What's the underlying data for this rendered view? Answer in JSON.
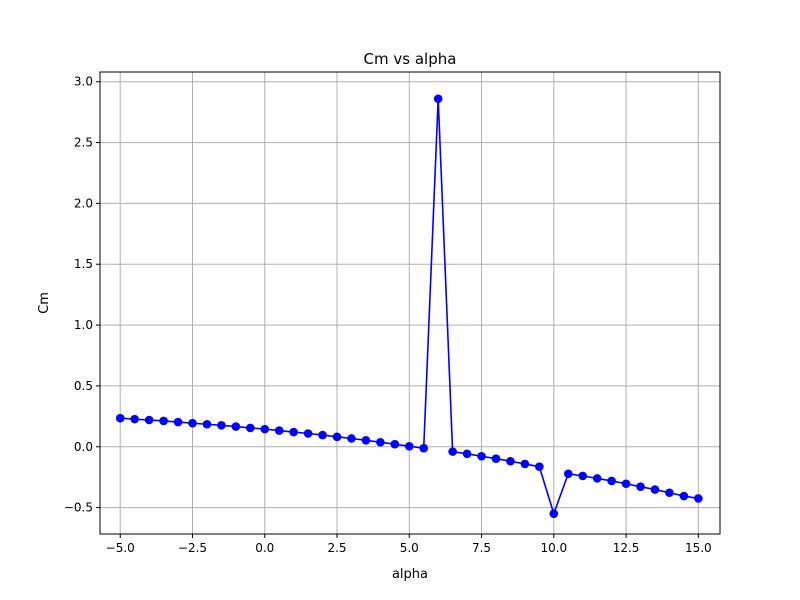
{
  "chart_data": {
    "type": "line",
    "title": "Cm vs alpha",
    "xlabel": "alpha",
    "ylabel": "Cm",
    "xlim": [
      -5.7,
      15.75
    ],
    "ylim": [
      -0.717,
      3.08
    ],
    "grid": true,
    "xticks": [
      -5.0,
      -2.5,
      0.0,
      2.5,
      5.0,
      7.5,
      10.0,
      12.5,
      15.0
    ],
    "xtick_labels": [
      "−5.0",
      "−2.5",
      "0.0",
      "2.5",
      "5.0",
      "7.5",
      "10.0",
      "12.5",
      "15.0"
    ],
    "yticks": [
      -0.5,
      0.0,
      0.5,
      1.0,
      1.5,
      2.0,
      2.5,
      3.0
    ],
    "ytick_labels": [
      "−0.5",
      "0.0",
      "0.5",
      "1.0",
      "1.5",
      "2.0",
      "2.5",
      "3.0"
    ],
    "series": [
      {
        "color": "#0000ff",
        "marker": "circle",
        "x": [
          -5.0,
          -4.5,
          -4.0,
          -3.5,
          -3.0,
          -2.5,
          -2.0,
          -1.5,
          -1.0,
          -0.5,
          0.0,
          0.5,
          1.0,
          1.5,
          2.0,
          2.5,
          3.0,
          3.5,
          4.0,
          4.5,
          5.0,
          5.5,
          6.0,
          6.5,
          7.0,
          7.5,
          8.0,
          8.5,
          9.0,
          9.5,
          10.0,
          10.5,
          11.0,
          11.5,
          12.0,
          12.5,
          13.0,
          13.5,
          14.0,
          14.5,
          15.0
        ],
        "y": [
          0.235,
          0.227,
          0.22,
          0.212,
          0.203,
          0.194,
          0.185,
          0.176,
          0.166,
          0.155,
          0.145,
          0.133,
          0.121,
          0.109,
          0.096,
          0.082,
          0.068,
          0.053,
          0.037,
          0.021,
          0.004,
          -0.012,
          2.86,
          -0.04,
          -0.058,
          -0.078,
          -0.098,
          -0.119,
          -0.141,
          -0.164,
          -0.55,
          -0.222,
          -0.24,
          -0.26,
          -0.281,
          -0.304,
          -0.328,
          -0.352,
          -0.378,
          -0.405,
          -0.425
        ]
      }
    ]
  }
}
